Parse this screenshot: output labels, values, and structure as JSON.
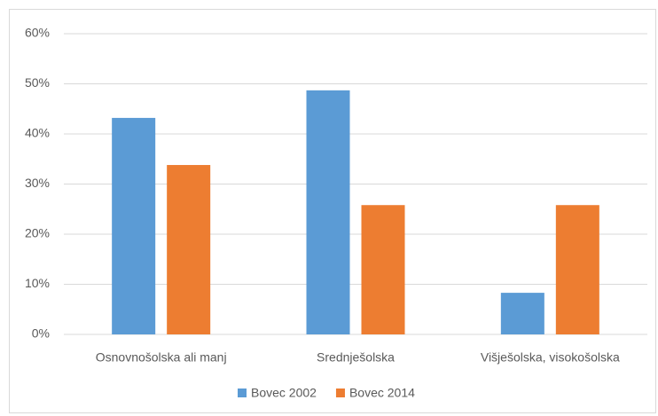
{
  "chart_data": {
    "type": "bar",
    "categories": [
      "Osnovnošolska ali manj",
      "Srednješolska",
      "Višješolska, visokošolska"
    ],
    "series": [
      {
        "name": "Bovec 2002",
        "color": "#5b9bd5",
        "values": [
          43.2,
          48.7,
          8.3
        ]
      },
      {
        "name": "Bovec 2014",
        "color": "#ed7d31",
        "values": [
          33.8,
          25.8,
          25.8
        ]
      }
    ],
    "ylim": [
      0,
      60
    ],
    "yticks": [
      {
        "value": 0,
        "label": "0%"
      },
      {
        "value": 10,
        "label": "10%"
      },
      {
        "value": 20,
        "label": "20%"
      },
      {
        "value": 30,
        "label": "30%"
      },
      {
        "value": 40,
        "label": "40%"
      },
      {
        "value": 50,
        "label": "50%"
      },
      {
        "value": 60,
        "label": "60%"
      }
    ],
    "grid": true,
    "legend": "bottom"
  }
}
